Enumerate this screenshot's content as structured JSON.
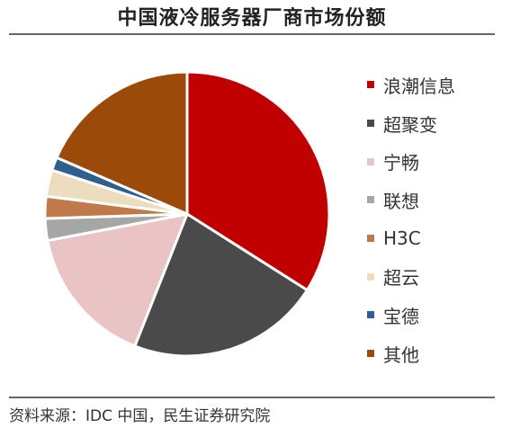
{
  "chart_data": {
    "type": "pie",
    "title": "中国液冷服务器厂商市场份额",
    "categories": [
      "浪潮信息",
      "超聚变",
      "宁畅",
      "联想",
      "H3C",
      "超云",
      "宝德",
      "其他"
    ],
    "values": [
      34,
      22,
      16,
      2.5,
      2.5,
      3,
      1.5,
      18.5
    ],
    "colors": [
      "#C00000",
      "#4A4A4A",
      "#EAC4C4",
      "#A6A6A6",
      "#C07A4A",
      "#EBDDBE",
      "#2D5F8F",
      "#9C4A09"
    ],
    "unit": "%",
    "start_angle_deg": 0,
    "direction": "clockwise",
    "legend_position": "right",
    "source": "资料来源：IDC 中国，民生证券研究院"
  }
}
